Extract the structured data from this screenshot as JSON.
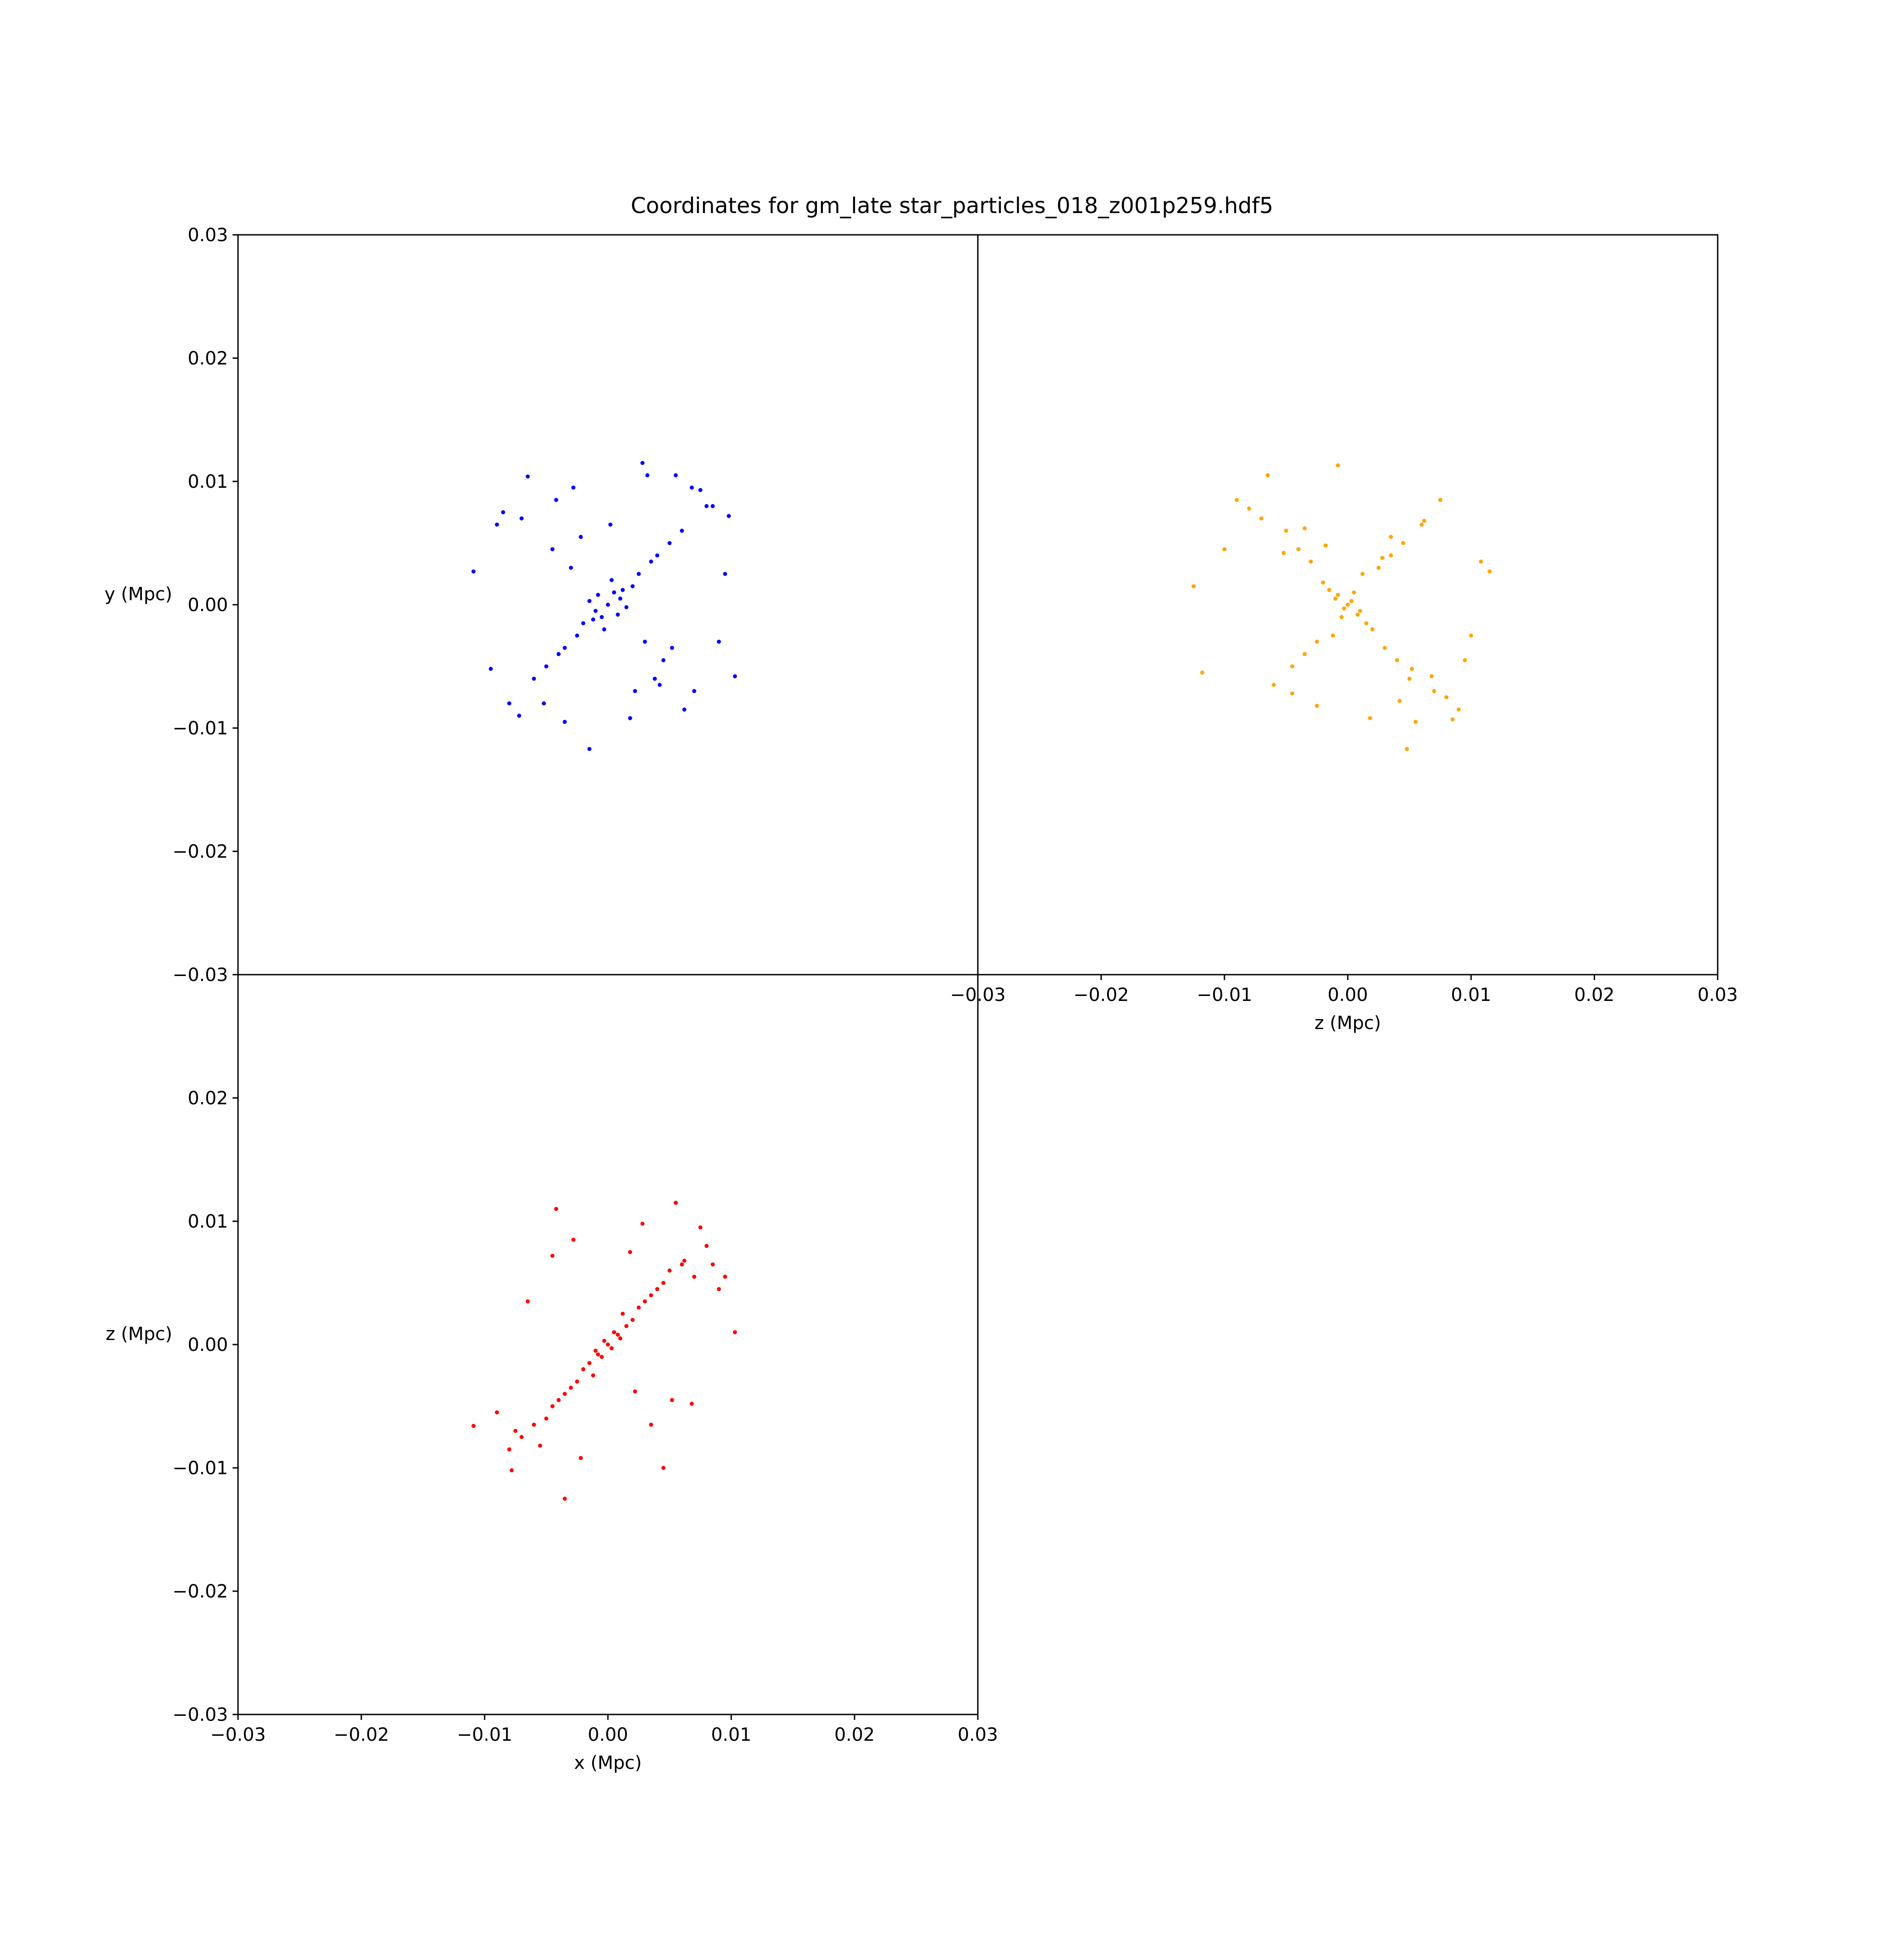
{
  "chart_data": {
    "type": "scatter",
    "title": "Coordinates for gm_late star_particles_018_z001p259.hdf5",
    "panels": [
      {
        "id": "xy",
        "xlabel": "",
        "ylabel": "y (Mpc)",
        "xlim": [
          -0.03,
          0.03
        ],
        "ylim": [
          -0.03,
          0.03
        ],
        "xticks": [],
        "yticks": [
          "0.03",
          "0.02",
          "0.01",
          "0.00",
          "−0.01",
          "−0.02",
          "−0.03"
        ],
        "color": "#0000ff",
        "series": [
          {
            "x": [
              0.0,
              0.001,
              -0.001,
              0.0005,
              -0.0005,
              0.0015,
              -0.0015,
              0.002,
              -0.002,
              0.0003,
              -0.0003,
              0.0008,
              -0.0008,
              0.0012,
              -0.0012,
              0.0025,
              -0.0025,
              0.003,
              -0.003,
              0.0035,
              -0.0035,
              0.004,
              -0.004,
              0.0045,
              -0.0045,
              0.005,
              -0.005,
              0.006,
              -0.006,
              0.007,
              -0.007,
              0.008,
              -0.008,
              0.009,
              -0.009,
              0.0095,
              -0.0095,
              0.0103,
              -0.0109,
              0.0028,
              -0.0015,
              0.0055,
              -0.0035,
              0.0075,
              -0.0065,
              0.0018,
              0.0002,
              0.0042,
              -0.0042,
              0.0062,
              0.0068,
              -0.0072,
              0.0085,
              -0.0085,
              0.0098,
              0.0038,
              -0.0028,
              0.0052,
              -0.0052,
              0.0032,
              0.0022,
              -0.0022
            ],
            "y": [
              0.0,
              0.0005,
              -0.0005,
              0.001,
              -0.001,
              -0.0002,
              0.0003,
              0.0015,
              -0.0015,
              0.002,
              -0.002,
              -0.0008,
              0.0008,
              0.0012,
              -0.0012,
              0.0025,
              -0.0025,
              -0.003,
              0.003,
              0.0035,
              -0.0035,
              0.004,
              -0.004,
              -0.0045,
              0.0045,
              0.005,
              -0.005,
              0.006,
              -0.006,
              -0.007,
              0.007,
              0.008,
              -0.008,
              -0.003,
              0.0065,
              0.0025,
              -0.0052,
              -0.0058,
              0.0027,
              0.0115,
              -0.0117,
              0.0105,
              -0.0095,
              0.0093,
              0.0104,
              -0.0092,
              0.0065,
              -0.0065,
              0.0085,
              -0.0085,
              0.0095,
              -0.009,
              0.008,
              0.0075,
              0.0072,
              -0.006,
              0.0095,
              -0.0035,
              -0.008,
              0.0105,
              -0.007,
              0.0055
            ]
          }
        ]
      },
      {
        "id": "zy",
        "xlabel": "z (Mpc)",
        "ylabel": "",
        "xlim": [
          -0.03,
          0.03
        ],
        "ylim": [
          -0.03,
          0.03
        ],
        "xticks": [
          "−0.03",
          "−0.02",
          "−0.01",
          "0.00",
          "0.01",
          "0.02",
          "0.03"
        ],
        "yticks": [],
        "color": "#ffa500",
        "series": [
          {
            "x": [
              0.0,
              0.001,
              -0.001,
              0.0005,
              -0.0005,
              0.0015,
              -0.0015,
              0.002,
              -0.002,
              0.0003,
              -0.0003,
              0.0008,
              -0.0008,
              0.0012,
              -0.0012,
              0.0025,
              -0.0025,
              0.003,
              -0.003,
              0.0035,
              -0.0035,
              0.004,
              -0.004,
              0.0045,
              -0.0045,
              0.005,
              -0.005,
              0.006,
              -0.006,
              0.007,
              -0.007,
              0.008,
              -0.008,
              0.009,
              -0.009,
              0.01,
              -0.01,
              0.0115,
              -0.0125,
              0.0108,
              -0.0118,
              0.0055,
              -0.0065,
              0.0075,
              0.0085,
              -0.0008,
              0.0048,
              0.0018,
              -0.0025,
              0.0062,
              -0.0045,
              0.0095,
              0.0035,
              -0.0035,
              0.0068,
              0.0028,
              -0.0018,
              0.0052,
              0.0042,
              -0.0052
            ],
            "y": [
              0.0,
              -0.0005,
              0.0005,
              0.001,
              -0.001,
              -0.0015,
              0.0012,
              -0.002,
              0.0018,
              0.0003,
              -0.0003,
              -0.0008,
              0.0008,
              0.0025,
              -0.0025,
              0.003,
              -0.003,
              -0.0035,
              0.0035,
              0.004,
              -0.004,
              -0.0045,
              0.0045,
              0.005,
              -0.005,
              -0.006,
              0.006,
              0.0065,
              -0.0065,
              -0.007,
              0.007,
              -0.0075,
              0.0078,
              -0.0085,
              0.0085,
              -0.0025,
              0.0045,
              0.0027,
              0.0015,
              0.0035,
              -0.0055,
              -0.0095,
              0.0105,
              0.0085,
              -0.0093,
              0.0113,
              -0.0117,
              -0.0092,
              -0.0082,
              0.0068,
              -0.0072,
              -0.0045,
              0.0055,
              0.0062,
              -0.0058,
              0.0038,
              0.0048,
              -0.0052,
              -0.0078,
              0.0042
            ]
          }
        ]
      },
      {
        "id": "xz",
        "xlabel": "x (Mpc)",
        "ylabel": "z (Mpc)",
        "xlim": [
          -0.03,
          0.03
        ],
        "ylim": [
          -0.03,
          0.03
        ],
        "xticks": [
          "−0.03",
          "−0.02",
          "−0.01",
          "0.00",
          "0.01",
          "0.02",
          "0.03"
        ],
        "yticks": [
          "0.02",
          "0.01",
          "0.00",
          "−0.01",
          "−0.02",
          "−0.03"
        ],
        "color": "#ff0000",
        "series": [
          {
            "x": [
              0.0,
              0.001,
              -0.001,
              0.0005,
              -0.0005,
              0.0015,
              -0.0015,
              0.002,
              -0.002,
              0.0003,
              -0.0003,
              0.0008,
              -0.0008,
              0.0012,
              -0.0012,
              0.0025,
              -0.0025,
              0.003,
              -0.003,
              0.0035,
              -0.0035,
              0.004,
              -0.004,
              0.0045,
              -0.0045,
              0.005,
              -0.005,
              0.006,
              -0.006,
              0.007,
              -0.007,
              0.008,
              -0.008,
              0.009,
              -0.009,
              0.0103,
              -0.0109,
              0.0055,
              -0.0042,
              0.0028,
              -0.0035,
              0.0075,
              -0.0078,
              0.0095,
              -0.0065,
              0.0018,
              -0.0022,
              0.0045,
              -0.0055,
              0.0062,
              -0.0075,
              0.0085,
              0.0035,
              -0.0028,
              0.0068,
              -0.0045,
              0.0052,
              0.0022
            ],
            "y": [
              0.0,
              0.0005,
              -0.0005,
              0.001,
              -0.001,
              0.0015,
              -0.0015,
              0.002,
              -0.002,
              -0.0003,
              0.0003,
              0.0008,
              -0.0008,
              0.0025,
              -0.0025,
              0.003,
              -0.003,
              0.0035,
              -0.0035,
              0.004,
              -0.004,
              0.0045,
              -0.0045,
              0.005,
              -0.005,
              0.006,
              -0.006,
              0.0065,
              -0.0065,
              0.0055,
              -0.0075,
              0.008,
              -0.0085,
              0.0045,
              -0.0055,
              0.001,
              -0.0066,
              0.0115,
              0.011,
              0.0098,
              -0.0125,
              0.0095,
              -0.0102,
              0.0055,
              0.0035,
              0.0075,
              -0.0092,
              -0.01,
              -0.0082,
              0.0068,
              -0.007,
              0.0065,
              -0.0065,
              0.0085,
              -0.0048,
              0.0072,
              -0.0045,
              -0.0038
            ]
          }
        ]
      }
    ]
  }
}
